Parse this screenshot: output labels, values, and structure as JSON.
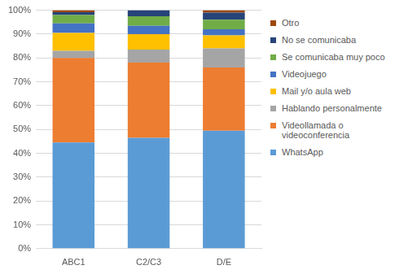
{
  "chart_data": {
    "type": "bar",
    "stacked": true,
    "grid": true,
    "legend": "right",
    "categories": [
      "ABC1",
      "C2/C3",
      "D/E"
    ],
    "series": [
      {
        "name": "WhatsApp",
        "color": "#5b9bd5",
        "values": [
          44.5,
          46.5,
          49.5
        ]
      },
      {
        "name": "Videollamada o videoconferencia",
        "color": "#ed7d31",
        "values": [
          35.5,
          31.5,
          26.5
        ]
      },
      {
        "name": "Hablando personalmente",
        "color": "#a5a5a5",
        "values": [
          3,
          5.5,
          8
        ]
      },
      {
        "name": "Mail y/o aula web",
        "color": "#ffc000",
        "values": [
          7.5,
          6.5,
          5.5
        ]
      },
      {
        "name": "Videojuego",
        "color": "#4472c4",
        "values": [
          4,
          3.5,
          2.5
        ]
      },
      {
        "name": "Se comunicaba muy poco",
        "color": "#70ad47",
        "values": [
          3.5,
          4,
          4
        ]
      },
      {
        "name": "No se comunicaba",
        "color": "#264478",
        "values": [
          1.2,
          2.5,
          3
        ]
      },
      {
        "name": "Otro",
        "color": "#9e480e",
        "values": [
          0.8,
          0,
          1
        ]
      }
    ],
    "ylim": [
      0,
      100
    ],
    "yticks": [
      {
        "value": 0,
        "label": "0%"
      },
      {
        "value": 10,
        "label": "10%"
      },
      {
        "value": 20,
        "label": "20%"
      },
      {
        "value": 30,
        "label": "30%"
      },
      {
        "value": 40,
        "label": "40%"
      },
      {
        "value": 50,
        "label": "50%"
      },
      {
        "value": 60,
        "label": "60%"
      },
      {
        "value": 70,
        "label": "70%"
      },
      {
        "value": 80,
        "label": "80%"
      },
      {
        "value": 90,
        "label": "90%"
      },
      {
        "value": 100,
        "label": "100%"
      }
    ]
  }
}
